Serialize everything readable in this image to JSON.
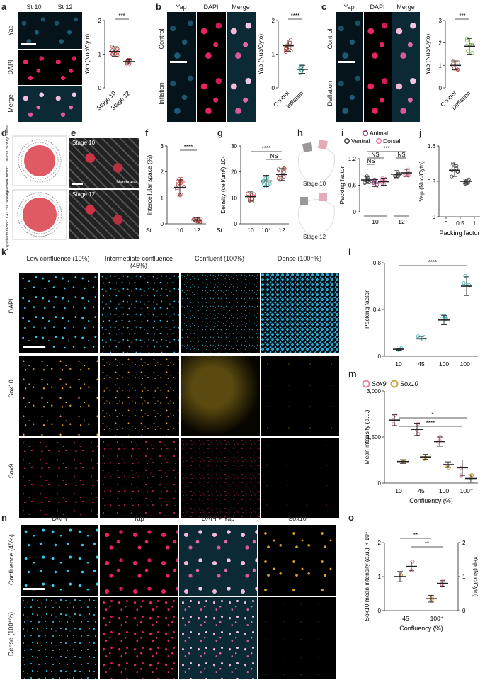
{
  "panels": {
    "a": {
      "letter": "a",
      "col_labels": [
        "St 10",
        "St 12"
      ],
      "row_labels": [
        "Yap",
        "DAPI",
        "Merge"
      ]
    },
    "b": {
      "letter": "b",
      "col_labels": [
        "Yap",
        "DAPI",
        "Merge"
      ],
      "row_labels": [
        "Control",
        "Inflation"
      ]
    },
    "c": {
      "letter": "c",
      "col_labels": [
        "Yap",
        "DAPI",
        "Merge"
      ],
      "row_labels": [
        "Control",
        "Deflation"
      ]
    },
    "d": {
      "letter": "d",
      "labels": [
        "Expansion factor: 1.00 cell density: 100%",
        "Expansion factor: 1.41 cell density: 177%"
      ]
    },
    "e": {
      "letter": "e",
      "labels": [
        "Stage 10",
        "Membrane",
        "Stage 12"
      ]
    },
    "f": {
      "letter": "f"
    },
    "g": {
      "letter": "g"
    },
    "h": {
      "letter": "h",
      "labels": [
        "Stage 10",
        "Stage 12"
      ]
    },
    "i": {
      "letter": "i"
    },
    "j": {
      "letter": "j"
    },
    "k": {
      "letter": "k",
      "col_labels": [
        "Low confluence (10%)",
        "Intermediate confluence (45%)",
        "Confluent (100%)",
        "Dense (100⁺%)"
      ],
      "row_labels": [
        "DAPI",
        "Sox10",
        "Sox9"
      ]
    },
    "l": {
      "letter": "l"
    },
    "m": {
      "letter": "m"
    },
    "n": {
      "letter": "n",
      "col_labels": [
        "DAPI",
        "Yap",
        "DAPI + Yap",
        "Sox10"
      ],
      "row_labels": [
        "Confluence (45%)",
        "Dense (100⁺%)"
      ]
    },
    "o": {
      "letter": "o"
    }
  },
  "colors": {
    "red": "#b5413f",
    "pink": "#e87aa8",
    "teal": "#3bb5b0",
    "green": "#7ab648",
    "gold": "#d4a23c",
    "purple": "#8a3a6e",
    "gray": "#555555"
  },
  "chart_data": [
    {
      "id": "a",
      "type": "scatter",
      "categories": [
        "Stage 10",
        "Stage 12"
      ],
      "ylabel": "Yap (Nuc/Cyto)",
      "yticks": [
        "0",
        "1",
        "2"
      ],
      "ylim": [
        0,
        2
      ],
      "means": [
        1.08,
        0.78
      ],
      "sig": "***"
    },
    {
      "id": "b",
      "type": "scatter",
      "categories": [
        "Control",
        "Inflation"
      ],
      "ylabel": "Yap (Nuc/Cyto)",
      "yticks": [
        "0",
        "1",
        "2"
      ],
      "ylim": [
        0,
        2
      ],
      "means": [
        1.25,
        0.55
      ],
      "sig": "****"
    },
    {
      "id": "c",
      "type": "scatter",
      "categories": [
        "Control",
        "Deflation"
      ],
      "ylabel": "Yap (Nuc/Cyto)",
      "yticks": [
        "0",
        "1",
        "2",
        "3"
      ],
      "ylim": [
        0,
        3
      ],
      "means": [
        1.0,
        1.85
      ],
      "sig": "***"
    },
    {
      "id": "f",
      "type": "scatter",
      "xlabel": "St",
      "categories": [
        "10",
        "12"
      ],
      "ylabel": "Intercellular space (%)",
      "yticks": [
        "0",
        "1",
        "2",
        "3"
      ],
      "ylim": [
        0,
        3
      ],
      "means": [
        1.4,
        0.15
      ],
      "sig": "****"
    },
    {
      "id": "g",
      "type": "scatter",
      "xlabel": "St",
      "categories": [
        "10",
        "10⁺",
        "12"
      ],
      "ylabel": "Density (cell/μm²) 10⁴",
      "yticks": [
        "0",
        "10",
        "20",
        "30"
      ],
      "ylim": [
        0,
        30
      ],
      "means": [
        10.5,
        16.5,
        19
      ],
      "sig": [
        "****",
        "NS"
      ]
    },
    {
      "id": "i",
      "type": "scatter",
      "categories": [
        "10",
        "12"
      ],
      "ylabel": "Packing factor",
      "yticks": [
        "0",
        "0.6",
        "1.2"
      ],
      "ylim": [
        0,
        1.2
      ],
      "legend": [
        "Animal",
        "Ventral",
        "Dorsal"
      ],
      "means": [
        0.72,
        0.65,
        0.68,
        0.85,
        0.88
      ],
      "sig": [
        "***",
        "NS",
        "NS",
        "NS"
      ]
    },
    {
      "id": "j",
      "type": "scatter",
      "xlabel": "Packing factor",
      "categories": [
        "0",
        "0.5",
        "1"
      ],
      "ylabel": "Yap (Nuc/Cyto)",
      "yticks": [
        "0",
        "0.8",
        "1.6"
      ],
      "ylim": [
        0,
        1.6
      ],
      "means": [
        1.05,
        0.8
      ]
    },
    {
      "id": "l",
      "type": "scatter",
      "categories": [
        "10",
        "45",
        "100",
        "100⁺"
      ],
      "ylabel": "Packing factor",
      "yticks": [
        "0",
        "0.4",
        "0.8"
      ],
      "ylim": [
        0,
        0.8
      ],
      "means": [
        0.06,
        0.15,
        0.31,
        0.6
      ],
      "sig": "****"
    },
    {
      "id": "m",
      "type": "scatter",
      "xlabel": "Confluency (%)",
      "categories": [
        "10",
        "45",
        "100",
        "100⁺"
      ],
      "ylabel": "Mean intensity (a.u.)",
      "yticks": [
        "0",
        "1,500",
        "3,000"
      ],
      "ylim": [
        0,
        3000
      ],
      "legend": [
        "Sox9",
        "Sox10"
      ],
      "series": [
        {
          "name": "Sox9",
          "values": [
            2050,
            1750,
            1350,
            500
          ]
        },
        {
          "name": "Sox10",
          "values": [
            700,
            850,
            600,
            150
          ]
        }
      ],
      "sig": [
        "*",
        "****"
      ]
    },
    {
      "id": "o",
      "type": "scatter",
      "xlabel": "Confluency (%)",
      "categories": [
        "45",
        "100⁺"
      ],
      "ylabel": "Sox10 mean intensity (a.u.) × 10³",
      "ylabel2": "Yap (Nuc/Cyto)",
      "yticks": [
        "0",
        "1",
        "2"
      ],
      "ylim": [
        0,
        2
      ],
      "series": [
        {
          "name": "Sox10",
          "values": [
            1.0,
            0.35
          ]
        },
        {
          "name": "Yap",
          "values": [
            1.3,
            0.8
          ]
        }
      ],
      "sig": [
        "**",
        "**"
      ]
    }
  ]
}
